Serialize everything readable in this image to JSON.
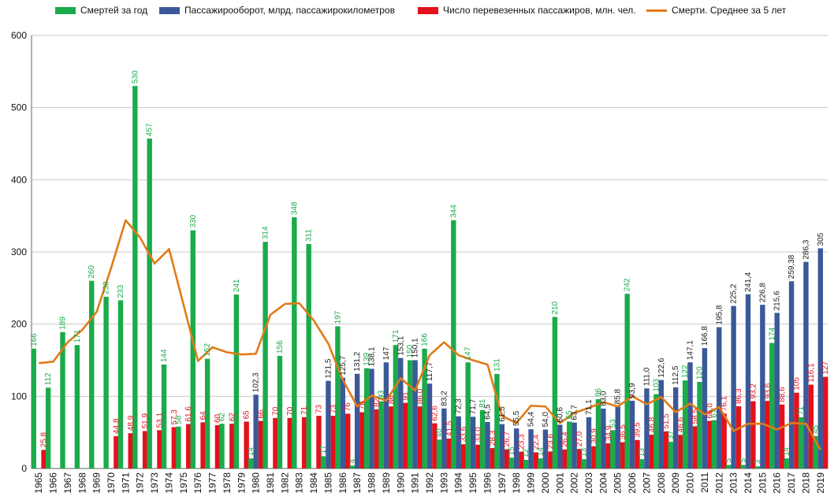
{
  "chart_data": {
    "type": "bar",
    "title": "",
    "xlabel": "",
    "ylabel": "",
    "ylim": [
      0,
      600
    ],
    "yticks": [
      "0",
      "100",
      "200",
      "300",
      "400",
      "500",
      "600"
    ],
    "grid": true,
    "legend_position": "top",
    "categories": [
      "1965",
      "1966",
      "1967",
      "1968",
      "1969",
      "1970",
      "1971",
      "1972",
      "1973",
      "1974",
      "1975",
      "1976",
      "1977",
      "1978",
      "1979",
      "1980",
      "1981",
      "1982",
      "1983",
      "1984",
      "1985",
      "1986",
      "1987",
      "1988",
      "1989",
      "1990",
      "1991",
      "1992",
      "1993",
      "1994",
      "1995",
      "1996",
      "1997",
      "1998",
      "1999",
      "2000",
      "2001",
      "2002",
      "2003",
      "2004",
      "2005",
      "2006",
      "2007",
      "2008",
      "2009",
      "2010",
      "2011",
      "2012",
      "2013",
      "2014",
      "2015",
      "2016",
      "2017",
      "2018",
      "2019"
    ],
    "series": [
      {
        "name": "Смертей за год",
        "kind": "bar",
        "color": "#1aab4a",
        "label_color": "#1aab4a",
        "values": [
          166,
          112,
          189,
          171,
          260,
          238,
          233,
          530,
          457,
          144,
          58,
          330,
          152,
          62,
          241,
          14,
          314,
          156,
          348,
          311,
          17,
          197,
          4,
          139,
          93,
          171,
          150,
          166,
          40,
          344,
          147,
          81,
          131,
          15,
          12,
          14,
          210,
          65,
          13,
          96,
          53,
          242,
          13,
          103,
          37,
          122,
          120,
          67,
          5,
          5,
          3,
          174,
          14,
          71,
          45
        ],
        "labels": [
          "166",
          "112",
          "189",
          "171",
          "260",
          "238",
          "233",
          "530",
          "457",
          "144",
          "58",
          "330",
          "152",
          "62",
          "241",
          "14",
          "314",
          "156",
          "348",
          "311",
          "17",
          "197",
          "4",
          "139",
          "93",
          "171",
          "150",
          "166",
          "40",
          "344",
          "147",
          "81",
          "131",
          "15",
          "12",
          "14",
          "210",
          "65",
          "13",
          "96",
          "53",
          "242",
          "13",
          "103",
          "37",
          "122",
          "120",
          "67",
          "5",
          "5",
          "3",
          "174",
          "14",
          "71",
          "45"
        ]
      },
      {
        "name": "Пассажирооборот, млрд. пассажирокилометров",
        "kind": "bar",
        "color": "#3b5998",
        "label_color": "#1a1a1a",
        "values": [
          null,
          null,
          null,
          null,
          null,
          null,
          null,
          null,
          null,
          null,
          null,
          null,
          null,
          null,
          null,
          102.3,
          null,
          null,
          null,
          null,
          121.5,
          125.7,
          131.2,
          138.1,
          147,
          153.1,
          150.1,
          117.7,
          83.2,
          72.3,
          71.7,
          64.5,
          61.5,
          55.5,
          54.4,
          54.0,
          60.6,
          63.7,
          71.1,
          83.0,
          85.8,
          93.9,
          111.0,
          122.6,
          112.5,
          147.1,
          166.8,
          195.8,
          225.2,
          241.4,
          226.8,
          215.6,
          259.38,
          286.3,
          305
        ],
        "labels": [
          "",
          "",
          "",
          "",
          "",
          "",
          "",
          "",
          "",
          "",
          "",
          "",
          "",
          "",
          "",
          "102,3",
          "",
          "",
          "",
          "",
          "121,5",
          "125,7",
          "131,2",
          "138,1",
          "147",
          "153,1",
          "150,1",
          "117,7",
          "83,2",
          "72,3",
          "71,7",
          "64,5",
          "61,5",
          "55,5",
          "54,4",
          "54,0",
          "60,6",
          "63,7",
          "71,1",
          "83,0",
          "85,8",
          "93,9",
          "111,0",
          "122,6",
          "112,5",
          "147,1",
          "166,8",
          "195,8",
          "225,2",
          "241,4",
          "226,8",
          "215,6",
          "259,38",
          "286,3",
          "305"
        ]
      },
      {
        "name": "Число перевезенных пассажиров, млн. чел.",
        "kind": "bar",
        "color": "#e3111b",
        "label_color": "#e3111b",
        "values": [
          25.8,
          null,
          null,
          null,
          null,
          44.8,
          48.9,
          51.9,
          53.1,
          57.3,
          61.6,
          64,
          60,
          62,
          65,
          66,
          70,
          70,
          71,
          73,
          73,
          76,
          78,
          82,
          86,
          91,
          86,
          62.6,
          41.5,
          33.6,
          33.0,
          28.3,
          26.7,
          23.3,
          22.4,
          23.6,
          26.4,
          27.0,
          30.9,
          34.9,
          36.5,
          39.5,
          46.8,
          51.5,
          46.6,
          58.5,
          66.0,
          76.1,
          86.3,
          93.2,
          93.6,
          88.6,
          105,
          116.1,
          127
        ],
        "labels": [
          "25,8",
          "",
          "",
          "",
          "",
          "44,8",
          "48,9",
          "51,9",
          "53,1",
          "57,3",
          "61,6",
          "64",
          "60",
          "62",
          "65",
          "66",
          "70",
          "70",
          "71",
          "73",
          "73",
          "76",
          "78",
          "82",
          "86",
          "91",
          "86,0",
          "62,6",
          "41,5",
          "33,6",
          "33,0",
          "28,3",
          "26,7",
          "23,3",
          "22,4",
          "23,6",
          "26,4",
          "27,0",
          "30,9",
          "34,9",
          "36,5",
          "39,5",
          "46,8",
          "51,5",
          "46,6",
          "58,5",
          "66,0",
          "76,1",
          "86,3",
          "93,2",
          "93,6",
          "88,6",
          "105",
          "116,1",
          "127"
        ]
      },
      {
        "name": "Смерти. Среднее за 5 лет",
        "kind": "line",
        "color": "#e07b18",
        "values": [
          146,
          148,
          175,
          192,
          217,
          278,
          344,
          320,
          284,
          304,
          227,
          149,
          168,
          161,
          158,
          159,
          213,
          228,
          229,
          205,
          173,
          123,
          86,
          101,
          94,
          125,
          108,
          157,
          175,
          157,
          150,
          144,
          73,
          63,
          87,
          86,
          63,
          77,
          84,
          92,
          86,
          100,
          89,
          99,
          78,
          90,
          75,
          85,
          52,
          62,
          62,
          54,
          63,
          62,
          26
        ]
      }
    ]
  }
}
